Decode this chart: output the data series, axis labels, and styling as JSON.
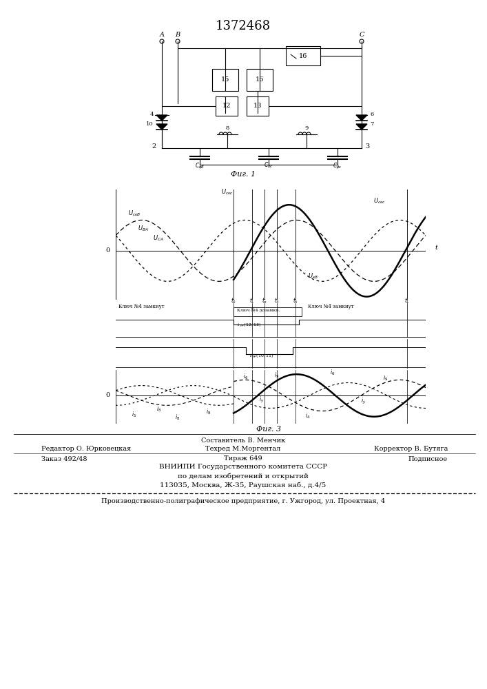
{
  "patent_number": "1372468",
  "fig1_label": "Фиг. 1",
  "fig3_label": "Фиг. 3",
  "background_color": "#ffffff",
  "line_color": "#000000",
  "editor_line1": "Редактор О. Юрковецкая",
  "editor_line2": "Техред М.Моргентал",
  "editor_line3": "Корректор В. Бутяга",
  "order_line1": "Заказ 492/48",
  "order_line2": "Тираж 649",
  "order_line3": "Подписное",
  "vniipи_line1": "ВНИИПИ Государственного комитета СССР",
  "vniipи_line2": "по делам изобретений и открытий",
  "vniipи_line3": "113035, Москва, Ж-35, Раушская наб., д.4/5",
  "production_line": "Производственно-полиграфическое предприятие, г. Ужгород, ул. Проектная, 4",
  "составитель": "Составитель В. Менчик"
}
